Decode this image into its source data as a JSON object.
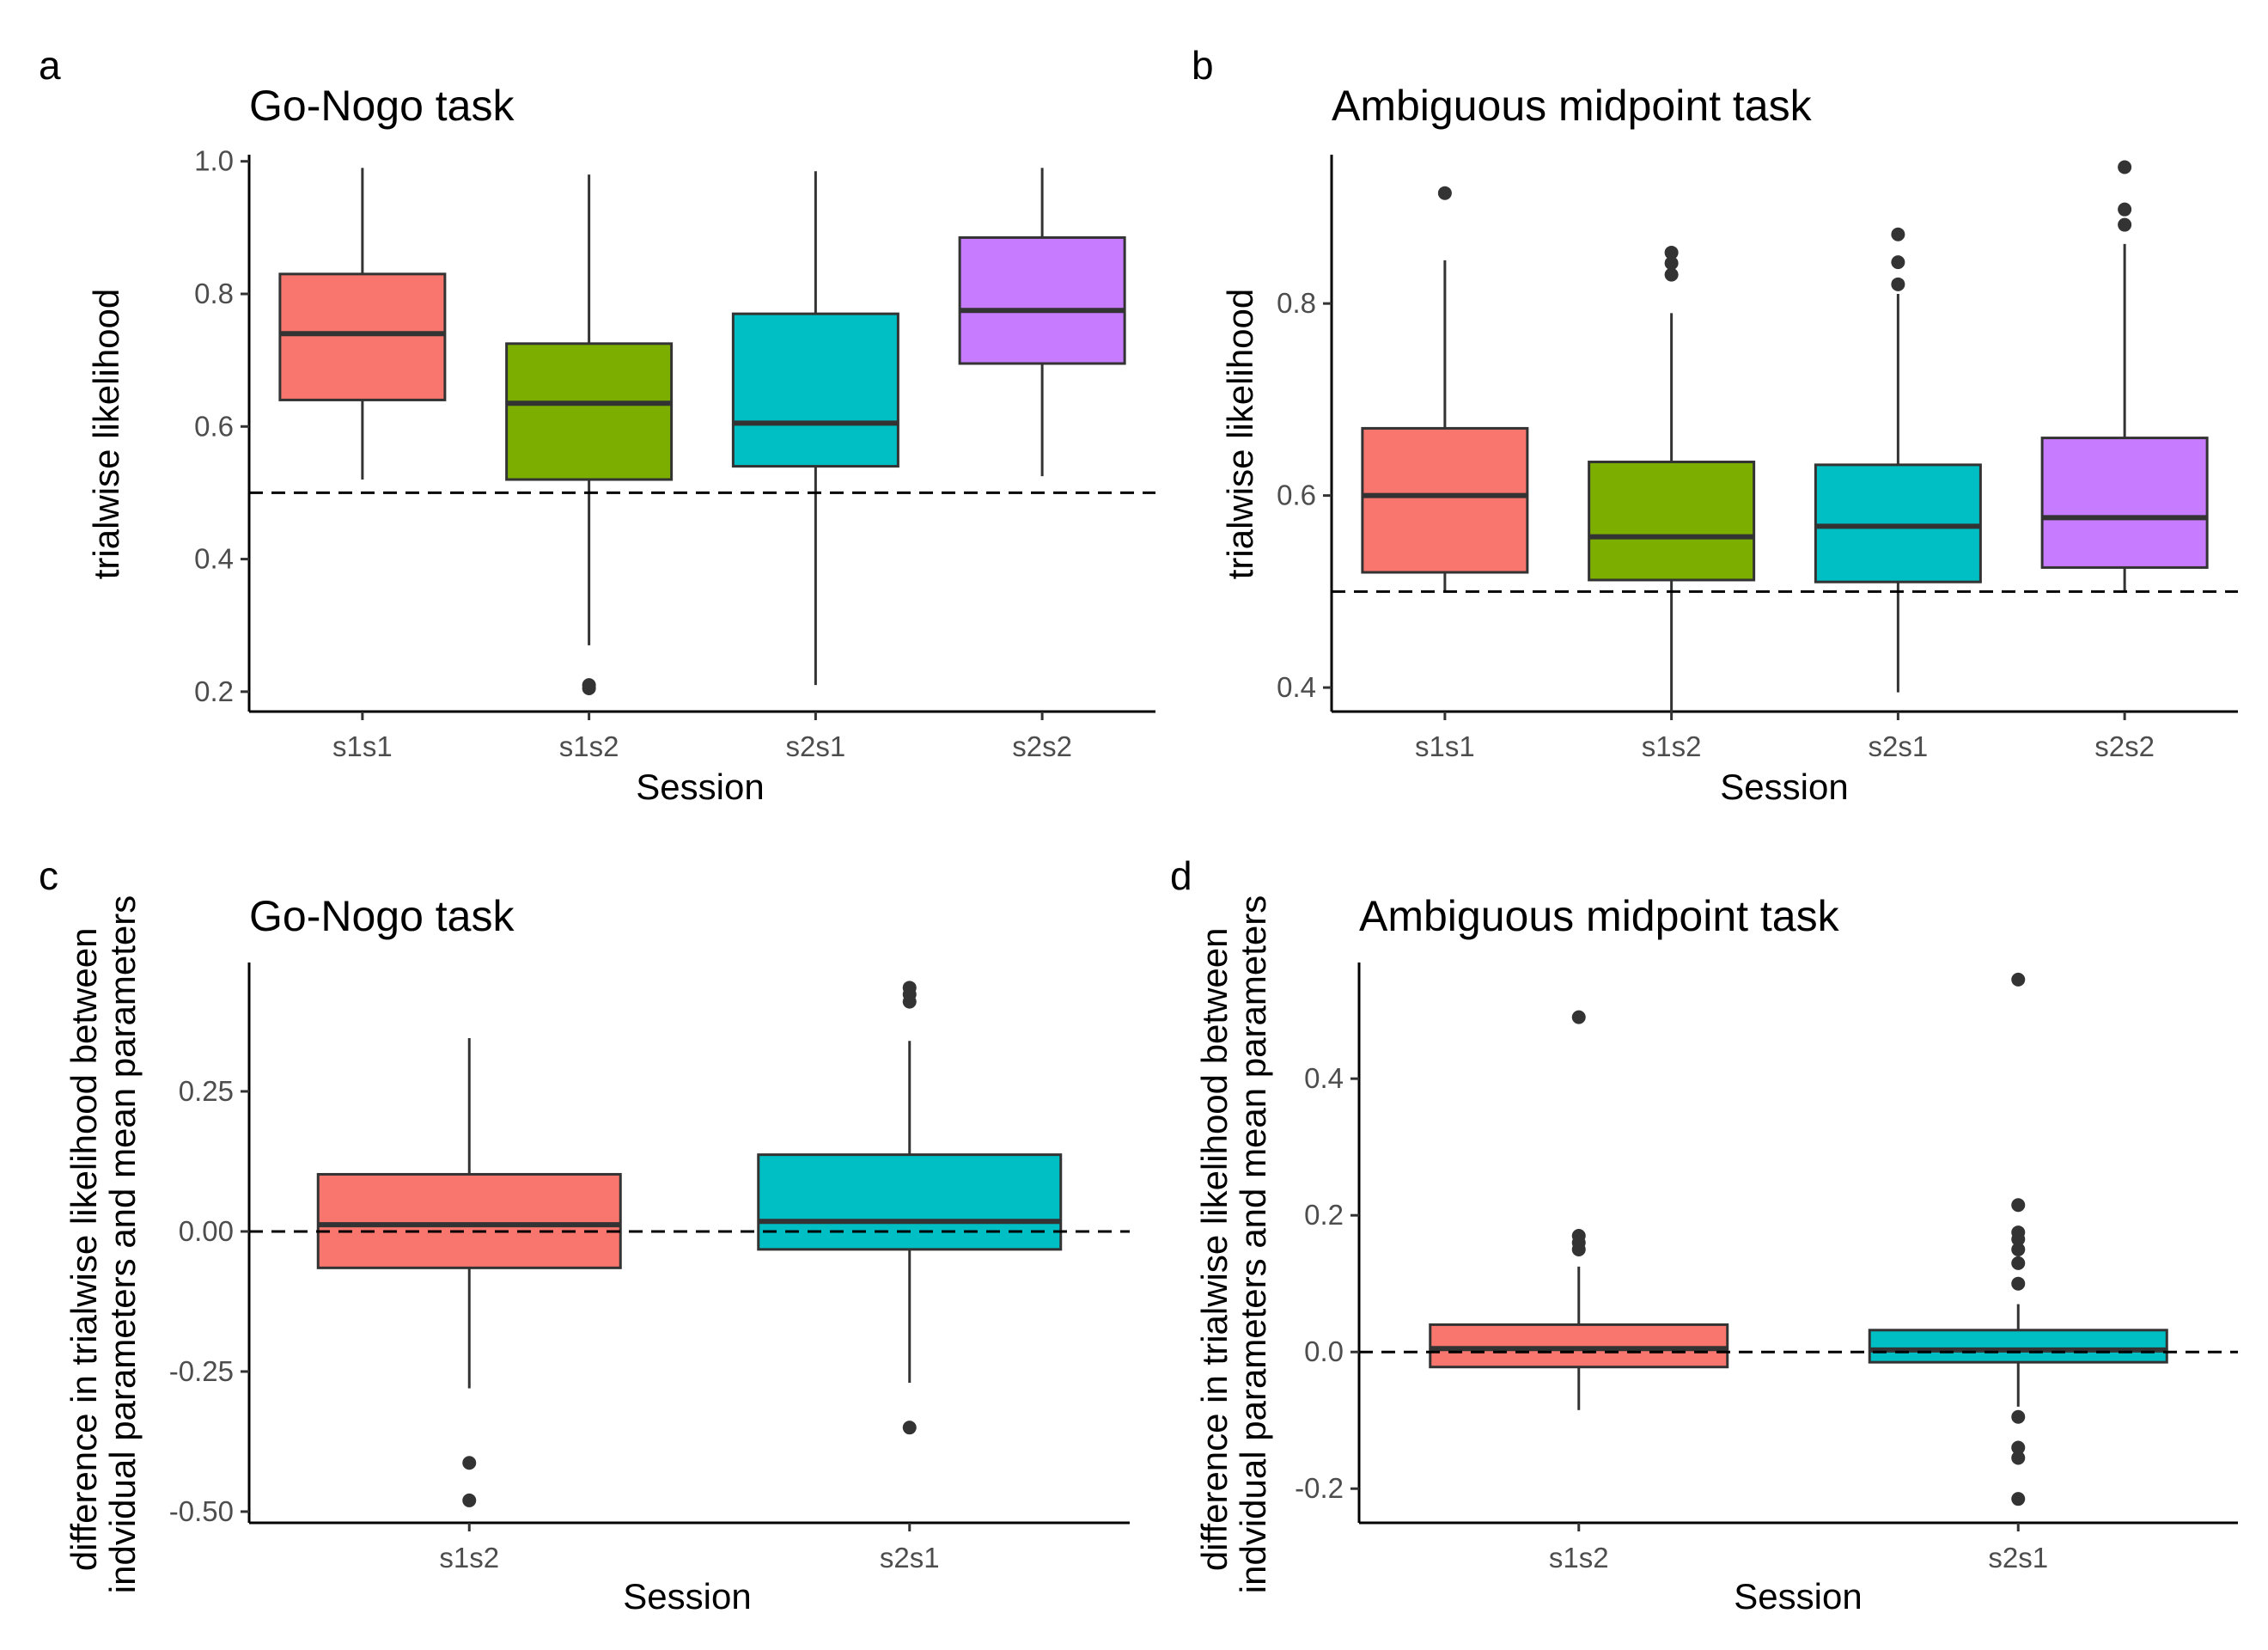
{
  "chart_data": [
    {
      "type": "box",
      "panel": "a",
      "title": "Go-Nogo task",
      "xlabel": "Session",
      "ylabel": [
        "trialwise likelihood"
      ],
      "ylim": [
        0.17,
        1.01
      ],
      "yticks": [
        0.2,
        0.4,
        0.6,
        0.8,
        1.0
      ],
      "ytick_labels": [
        "0.2",
        "0.4",
        "0.6",
        "0.8",
        "1.0"
      ],
      "reference_line": 0.5,
      "categories": [
        "s1s1",
        "s1s2",
        "s2s1",
        "s2s2"
      ],
      "colors": [
        "#F8766D",
        "#7CAE00",
        "#00BFC4",
        "#C77CFF"
      ],
      "boxes": [
        {
          "whisker_low": 0.52,
          "q1": 0.64,
          "median": 0.74,
          "q3": 0.83,
          "whisker_high": 0.99,
          "outliers": []
        },
        {
          "whisker_low": 0.27,
          "q1": 0.52,
          "median": 0.635,
          "q3": 0.725,
          "whisker_high": 0.98,
          "outliers": [
            0.205,
            0.21
          ]
        },
        {
          "whisker_low": 0.21,
          "q1": 0.54,
          "median": 0.605,
          "q3": 0.77,
          "whisker_high": 0.985,
          "outliers": []
        },
        {
          "whisker_low": 0.525,
          "q1": 0.695,
          "median": 0.775,
          "q3": 0.885,
          "whisker_high": 0.99,
          "outliers": []
        }
      ],
      "grid": false,
      "legend": "none"
    },
    {
      "type": "box",
      "panel": "b",
      "title": "Ambiguous midpoint task",
      "xlabel": "Session",
      "ylabel": [
        "trialwise likelihood"
      ],
      "ylim": [
        0.375,
        0.955
      ],
      "yticks": [
        0.4,
        0.6,
        0.8
      ],
      "ytick_labels": [
        "0.4",
        "0.6",
        "0.8"
      ],
      "reference_line": 0.5,
      "categories": [
        "s1s1",
        "s1s2",
        "s2s1",
        "s2s2"
      ],
      "colors": [
        "#F8766D",
        "#7CAE00",
        "#00BFC4",
        "#C77CFF"
      ],
      "boxes": [
        {
          "whisker_low": 0.5,
          "q1": 0.52,
          "median": 0.6,
          "q3": 0.67,
          "whisker_high": 0.845,
          "outliers": [
            0.915
          ]
        },
        {
          "whisker_low": 0.375,
          "q1": 0.512,
          "median": 0.557,
          "q3": 0.635,
          "whisker_high": 0.79,
          "outliers": [
            0.83,
            0.842,
            0.853
          ]
        },
        {
          "whisker_low": 0.395,
          "q1": 0.51,
          "median": 0.568,
          "q3": 0.632,
          "whisker_high": 0.81,
          "outliers": [
            0.82,
            0.843,
            0.872
          ]
        },
        {
          "whisker_low": 0.5,
          "q1": 0.525,
          "median": 0.577,
          "q3": 0.66,
          "whisker_high": 0.862,
          "outliers": [
            0.882,
            0.898,
            0.942
          ]
        }
      ],
      "grid": false,
      "legend": "none"
    },
    {
      "type": "box",
      "panel": "c",
      "title": "Go-Nogo task",
      "xlabel": "Session",
      "ylabel": [
        "difference in trialwise likelihood between",
        "indvidual parameters and mean parameters"
      ],
      "ylim": [
        -0.52,
        0.48
      ],
      "yticks": [
        -0.5,
        -0.25,
        0.0,
        0.25
      ],
      "ytick_labels": [
        "-0.50",
        "-0.25",
        "0.00",
        "0.25"
      ],
      "reference_line": 0.0,
      "categories": [
        "s1s2",
        "s2s1"
      ],
      "colors": [
        "#F8766D",
        "#00BFC4"
      ],
      "boxes": [
        {
          "whisker_low": -0.28,
          "q1": -0.065,
          "median": 0.012,
          "q3": 0.102,
          "whisker_high": 0.345,
          "outliers": [
            -0.48,
            -0.413
          ]
        },
        {
          "whisker_low": -0.27,
          "q1": -0.032,
          "median": 0.018,
          "q3": 0.137,
          "whisker_high": 0.34,
          "outliers": [
            -0.35,
            0.41,
            0.423,
            0.435
          ]
        }
      ],
      "grid": false,
      "legend": "none"
    },
    {
      "type": "box",
      "panel": "d",
      "title": "Ambiguous midpoint task",
      "xlabel": "Session",
      "ylabel": [
        "difference in trialwise likelihood between",
        "indvidual parameters and mean parameters"
      ],
      "ylim": [
        -0.25,
        0.57
      ],
      "yticks": [
        -0.2,
        0.0,
        0.2,
        0.4
      ],
      "ytick_labels": [
        "-0.2",
        "0.0",
        "0.2",
        "0.4"
      ],
      "reference_line": 0.0,
      "categories": [
        "s1s2",
        "s2s1"
      ],
      "colors": [
        "#F8766D",
        "#00BFC4"
      ],
      "boxes": [
        {
          "whisker_low": -0.085,
          "q1": -0.022,
          "median": 0.005,
          "q3": 0.04,
          "whisker_high": 0.125,
          "outliers": [
            0.15,
            0.16,
            0.17,
            0.49
          ]
        },
        {
          "whisker_low": -0.08,
          "q1": -0.015,
          "median": 0.003,
          "q3": 0.032,
          "whisker_high": 0.07,
          "outliers": [
            -0.215,
            -0.155,
            -0.14,
            -0.095,
            0.1,
            0.13,
            0.15,
            0.165,
            0.175,
            0.215,
            0.545
          ]
        }
      ],
      "grid": false,
      "legend": "none"
    }
  ]
}
